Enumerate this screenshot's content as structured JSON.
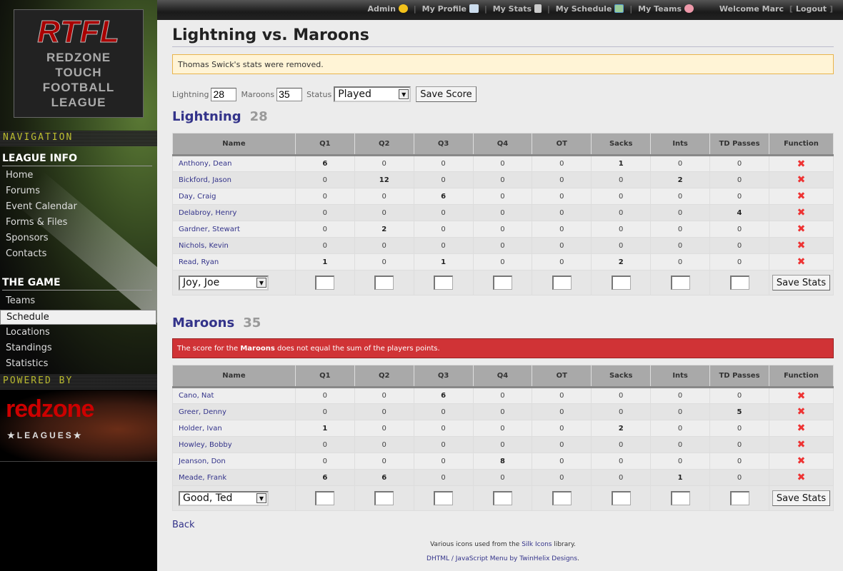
{
  "sidebar": {
    "logo": {
      "title": "RTFL",
      "lines": [
        "REDZONE",
        "TOUCH",
        "FOOTBALL",
        "LEAGUE"
      ]
    },
    "nav_banner": "NAVIGATION",
    "sections": [
      {
        "title": "LEAGUE INFO",
        "items": [
          "Home",
          "Forums",
          "Event Calendar",
          "Forms & Files",
          "Sponsors",
          "Contacts"
        ]
      },
      {
        "title": "THE GAME",
        "items": [
          "Teams",
          "Schedule",
          "Locations",
          "Standings",
          "Statistics"
        ],
        "active": "Schedule"
      }
    ],
    "powered_banner": "POWERED BY",
    "powered_logo": {
      "name": "redzone",
      "sub": "★LEAGUES★"
    }
  },
  "topbar": {
    "admin": "Admin",
    "profile": "My Profile",
    "stats": "My Stats",
    "schedule": "My Schedule",
    "teams": "My Teams",
    "welcome": "Welcome Marc",
    "logout": "Logout"
  },
  "page": {
    "title": "Lightning vs. Maroons",
    "notice": "Thomas Swick's stats were removed.",
    "score_form": {
      "home_label": "Lightning",
      "home_score": "28",
      "away_label": "Maroons",
      "away_score": "35",
      "status_label": "Status",
      "status": "Played",
      "save": "Save Score"
    },
    "columns": [
      "Name",
      "Q1",
      "Q2",
      "Q3",
      "Q4",
      "OT",
      "Sacks",
      "Ints",
      "TD Passes",
      "Function"
    ],
    "teams": [
      {
        "name": "Lightning",
        "score": "28",
        "error": null,
        "players": [
          [
            "Anthony, Dean",
            6,
            0,
            0,
            0,
            0,
            1,
            0,
            0
          ],
          [
            "Bickford, Jason",
            0,
            12,
            0,
            0,
            0,
            0,
            2,
            0
          ],
          [
            "Day, Craig",
            0,
            0,
            6,
            0,
            0,
            0,
            0,
            0
          ],
          [
            "Delabroy, Henry",
            0,
            0,
            0,
            0,
            0,
            0,
            0,
            4
          ],
          [
            "Gardner, Stewart",
            0,
            2,
            0,
            0,
            0,
            0,
            0,
            0
          ],
          [
            "Nichols, Kevin",
            0,
            0,
            0,
            0,
            0,
            0,
            0,
            0
          ],
          [
            "Read, Ryan",
            1,
            0,
            1,
            0,
            0,
            2,
            0,
            0
          ]
        ],
        "add_player": "Joy, Joe",
        "save": "Save Stats"
      },
      {
        "name": "Maroons",
        "score": "35",
        "error": {
          "pre": "The score for the ",
          "team": "Maroons",
          "post": " does not equal the sum of the players points."
        },
        "players": [
          [
            "Cano, Nat",
            0,
            0,
            6,
            0,
            0,
            0,
            0,
            0
          ],
          [
            "Greer, Denny",
            0,
            0,
            0,
            0,
            0,
            0,
            0,
            5
          ],
          [
            "Holder, Ivan",
            1,
            0,
            0,
            0,
            0,
            2,
            0,
            0
          ],
          [
            "Howley, Bobby",
            0,
            0,
            0,
            0,
            0,
            0,
            0,
            0
          ],
          [
            "Jeanson, Don",
            0,
            0,
            0,
            8,
            0,
            0,
            0,
            0
          ],
          [
            "Meade, Frank",
            6,
            6,
            0,
            0,
            0,
            0,
            1,
            0
          ]
        ],
        "add_player": "Good, Ted",
        "save": "Save Stats"
      }
    ],
    "back": "Back",
    "footer": {
      "l1_pre": "Various icons used from the ",
      "l1_link": "Silk Icons",
      "l1_post": " library.",
      "l2_link": "DHTML / JavaScript Menu by TwinHelix Designs",
      "l2_post": "."
    }
  }
}
